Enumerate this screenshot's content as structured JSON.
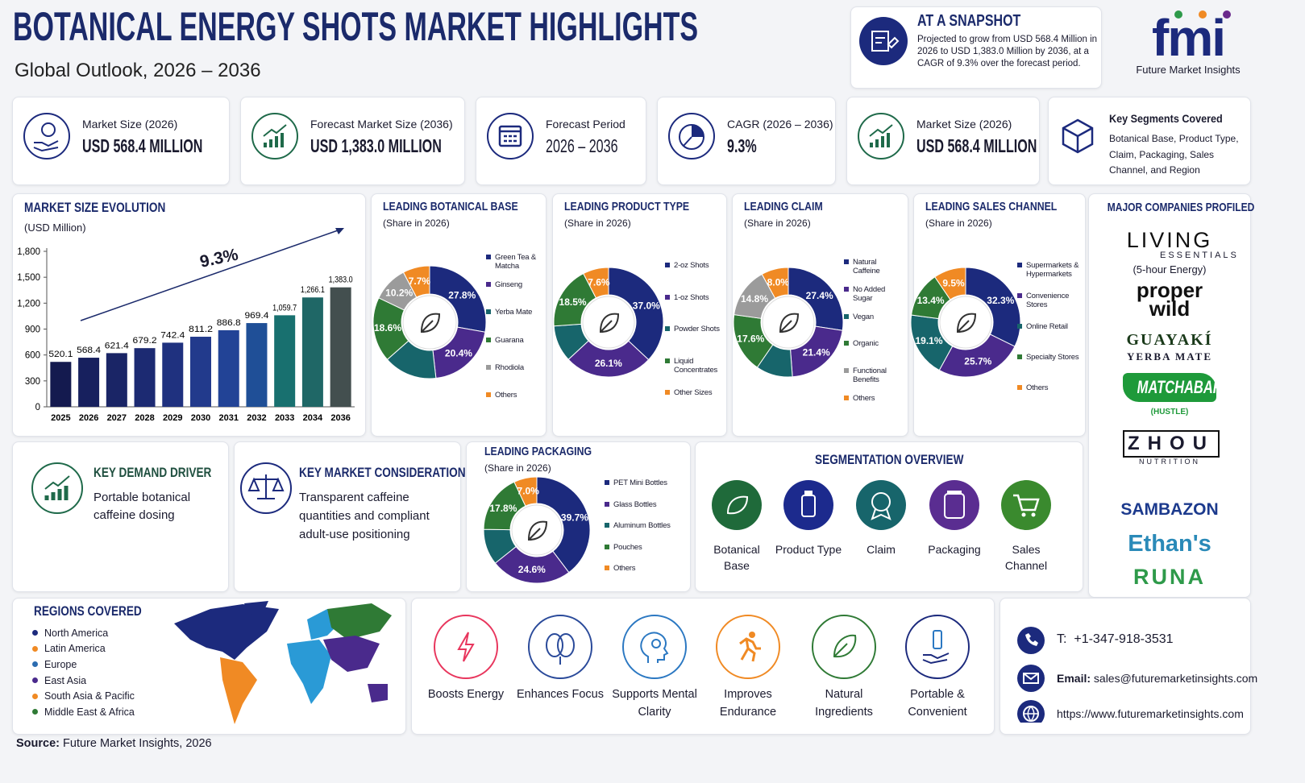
{
  "header": {
    "title": "BOTANICAL ENERGY SHOTS MARKET HIGHLIGHTS",
    "subtitle": "Global Outlook, 2026 – 2036"
  },
  "snapshot": {
    "title": "AT A SNAPSHOT",
    "text": "Projected to grow from USD 568.4 Million in 2026 to USD 1,383.0 Million by 2036, at a CAGR of 9.3% over the forecast period."
  },
  "logo": {
    "mark": "fmi",
    "name": "Future Market Insights"
  },
  "kpis": [
    {
      "label": "Market Size (2026)",
      "value": "USD 568.4 MILLION"
    },
    {
      "label": "Forecast Market Size (2036)",
      "value": "USD 1,383.0 MILLION"
    },
    {
      "label": "Forecast Period",
      "value": "2026 – 2036"
    },
    {
      "label": "CAGR (2026 – 2036)",
      "value": "9.3%"
    },
    {
      "label": "Market Size (2026)",
      "value": "USD 568.4 MILLION"
    },
    {
      "label": "Key Segments Covered",
      "value": "Botanical Base, Product Type, Claim, Packaging, Sales Channel, and Region"
    }
  ],
  "chart_data": [
    {
      "type": "bar",
      "title": "MARKET SIZE EVOLUTION",
      "subtitle": "(USD Million)",
      "annotation": "9.3%",
      "categories": [
        "2025",
        "2026",
        "2027",
        "2028",
        "2029",
        "2030",
        "2031",
        "2032",
        "2033",
        "2034",
        "2036"
      ],
      "values": [
        520.1,
        568.4,
        621.4,
        679.2,
        742.4,
        811.2,
        886.8,
        969.4,
        1059.7,
        1266.1,
        1383.0
      ],
      "value_labels": [
        "520.1",
        "568.4",
        "621.4",
        "679.2",
        "742.4",
        "811.2",
        "886.8",
        "969.4",
        "1,059.7",
        "1,266.1",
        "1,383.0"
      ],
      "colors": [
        "#141a4f",
        "#17205e",
        "#1a2566",
        "#1c2a72",
        "#1f317f",
        "#223a8c",
        "#224396",
        "#1f4f97",
        "#18706f",
        "#1f6766",
        "#434f4f"
      ],
      "ylim": [
        0,
        1800
      ],
      "yticks": [
        0,
        300,
        600,
        900,
        {
          "value": 1200,
          "label": "1,200"
        },
        {
          "value": 1500,
          "label": "1,500"
        },
        {
          "value": 1800,
          "label": "1,800"
        }
      ]
    },
    {
      "type": "pie",
      "title": "LEADING BOTANICAL BASE",
      "subtitle": "(Share in 2026)",
      "categories": [
        "Green Tea & Matcha",
        "Ginseng",
        "Yerba Mate",
        "Guarana",
        "Rhodiola",
        "Others"
      ],
      "values": [
        27.8,
        20.4,
        15.3,
        18.6,
        10.2,
        7.7
      ],
      "value_labels": [
        "27.8%",
        "20.4%",
        null,
        "18.6%",
        "10.2%",
        "7.7%"
      ],
      "colors": [
        "#1c2a7d",
        "#4a2a8c",
        "#17656b",
        "#2f7a35",
        "#9b9b9b",
        "#f08a24"
      ]
    },
    {
      "type": "pie",
      "title": "LEADING PRODUCT TYPE",
      "subtitle": "(Share in 2026)",
      "categories": [
        "2-oz Shots",
        "1-oz Shots",
        "Powder Shots",
        "Liquid Concentrates",
        "Other Sizes"
      ],
      "values": [
        37.0,
        26.1,
        10.8,
        18.5,
        7.6
      ],
      "value_labels": [
        "37.0%",
        "26.1%",
        null,
        "18.5%",
        "7.6%"
      ],
      "colors": [
        "#1c2a7d",
        "#4a2a8c",
        "#17656b",
        "#2f7a35",
        "#f08a24"
      ]
    },
    {
      "type": "pie",
      "title": "LEADING CLAIM",
      "subtitle": "(Share in 2026)",
      "categories": [
        "Natural Caffeine",
        "No Added Sugar",
        "Vegan",
        "Organic",
        "Functional Benefits",
        "Others"
      ],
      "values": [
        27.4,
        21.4,
        10.8,
        17.6,
        14.8,
        8.0
      ],
      "value_labels": [
        "27.4%",
        "21.4%",
        null,
        "17.6%",
        "14.8%",
        "8.0%"
      ],
      "colors": [
        "#1c2a7d",
        "#4a2a8c",
        "#17656b",
        "#2f7a35",
        "#9b9b9b",
        "#f08a24"
      ]
    },
    {
      "type": "pie",
      "title": "LEADING SALES CHANNEL",
      "subtitle": "(Share in 2026)",
      "categories": [
        "Supermarkets & Hypermarkets",
        "Convenience Stores",
        "Online Retail",
        "Specialty Stores",
        "Others"
      ],
      "values": [
        32.3,
        25.7,
        19.1,
        13.4,
        9.5
      ],
      "value_labels": [
        "32.3%",
        "25.7%",
        "19.1%",
        "13.4%",
        "9.5%"
      ],
      "colors": [
        "#1c2a7d",
        "#4a2a8c",
        "#17656b",
        "#2f7a35",
        "#f08a24"
      ]
    },
    {
      "type": "pie",
      "title": "LEADING PACKAGING",
      "subtitle": "(Share in 2026)",
      "categories": [
        "PET Mini Bottles",
        "Glass Bottles",
        "Aluminum Bottles",
        "Pouches",
        "Others"
      ],
      "values": [
        39.7,
        24.6,
        10.9,
        17.8,
        7.0
      ],
      "value_labels": [
        "39.7%",
        "24.6%",
        null,
        "17.8%",
        "7.0%"
      ],
      "colors": [
        "#1c2a7d",
        "#4a2a8c",
        "#17656b",
        "#2f7a35",
        "#f08a24"
      ]
    }
  ],
  "companies": {
    "title": "MAJOR COMPANIES PROFILED",
    "items": [
      {
        "logo": [
          "LIVING",
          "ESSENTIALS"
        ],
        "note": "(5-hour Energy)"
      },
      {
        "logo": [
          "proper",
          "wild"
        ]
      },
      {
        "logo": [
          "GUAYAKÍ",
          "YERBA MATE"
        ]
      },
      {
        "logo": [
          "MATCHABAR"
        ],
        "note": "(HUSTLE)"
      },
      {
        "logo": [
          "ZHOU",
          "NUTRITION"
        ]
      },
      {
        "logo": [
          "SAMBAZON"
        ]
      },
      {
        "logo": [
          "Ethan's"
        ]
      },
      {
        "logo": [
          "RUNA"
        ]
      }
    ]
  },
  "demand_driver": {
    "title": "KEY DEMAND DRIVER",
    "text": "Portable botanical caffeine dosing"
  },
  "market_consideration": {
    "title": "KEY MARKET CONSIDERATION",
    "text": "Transparent caffeine quantities and compliant adult-use positioning"
  },
  "segmentation": {
    "title": "SEGMENTATION OVERVIEW",
    "items": [
      "Botanical Base",
      "Product Type",
      "Claim",
      "Packaging",
      "Sales Channel"
    ]
  },
  "regions": {
    "title": "REGIONS COVERED",
    "items": [
      "North America",
      "Latin America",
      "Europe",
      "East Asia",
      "South Asia & Pacific",
      "Middle East & Africa"
    ]
  },
  "benefits": [
    "Boosts Energy",
    "Enhances Focus",
    "Supports Mental Clarity",
    "Improves Endurance",
    "Natural Ingredients",
    "Portable & Convenient"
  ],
  "contact": {
    "phone_label": "T:",
    "phone": "+1-347-918-3531",
    "email_label": "Email:",
    "email": "sales@futuremarketinsights.com",
    "website": "https://www.futuremarketinsights.com"
  },
  "source": {
    "label": "Source:",
    "text": "Future Market Insights, 2026"
  }
}
